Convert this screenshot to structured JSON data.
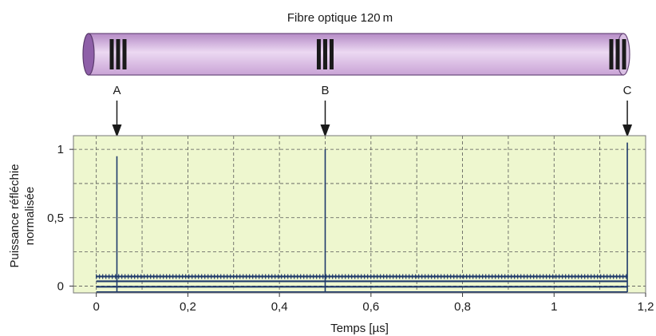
{
  "fibre": {
    "title": "Fibre optique 120 m",
    "markers": [
      {
        "label": "A",
        "time_us": 0.045
      },
      {
        "label": "B",
        "time_us": 0.5
      },
      {
        "label": "C",
        "time_us": 1.16
      }
    ]
  },
  "chart_data": {
    "type": "line",
    "xlabel": "Temps [µs]",
    "ylabel": "Puissance réfléchie normalisée",
    "ylabel_lines": [
      "Puissance réfléchie",
      "normalisée"
    ],
    "xlim": [
      -0.05,
      1.2
    ],
    "ylim": [
      -0.05,
      1.1
    ],
    "x_ticks": [
      {
        "value": 0,
        "label": "0"
      },
      {
        "value": 0.2,
        "label": "0,2"
      },
      {
        "value": 0.4,
        "label": "0,4"
      },
      {
        "value": 0.6,
        "label": "0,6"
      },
      {
        "value": 0.8,
        "label": "0,8"
      },
      {
        "value": 1,
        "label": "1"
      },
      {
        "value": 1.2,
        "label": "1,2"
      }
    ],
    "y_ticks": [
      {
        "value": 0,
        "label": "0"
      },
      {
        "value": 0.5,
        "label": "0,5"
      },
      {
        "value": 1,
        "label": "1"
      }
    ],
    "grid": true,
    "background": "#eef7cf",
    "series_color": "#1f3a6b",
    "baselines": [
      0.07,
      0.035,
      -0.005,
      -0.045
    ],
    "trace_range": [
      0.0,
      1.16
    ],
    "peaks": [
      {
        "label": "A",
        "x": 0.045,
        "y": 0.95
      },
      {
        "label": "B",
        "x": 0.5,
        "y": 1.0
      },
      {
        "label": "C",
        "x": 1.16,
        "y": 1.05
      }
    ]
  },
  "colors": {
    "fibre_body": "#c9a3d6",
    "fibre_end": "#8e5fa8",
    "grating": "#1a1a1a"
  }
}
